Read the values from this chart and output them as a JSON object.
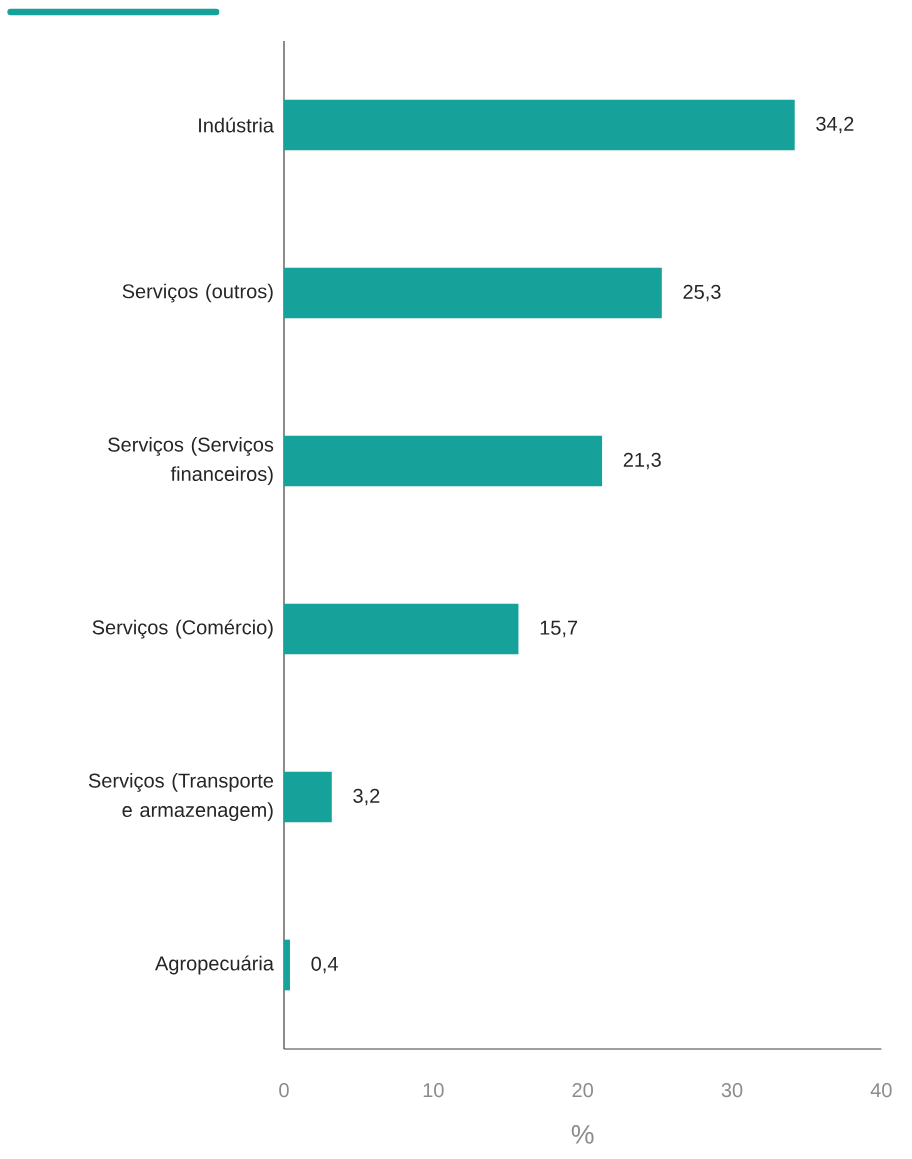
{
  "chart_data": {
    "type": "bar",
    "orientation": "horizontal",
    "xlabel": "%",
    "categories": [
      "Indústria",
      "Serviços (outros)",
      "Serviços (Serviços financeiros)",
      "Serviços (Comércio)",
      "Serviços (Transporte e armazenagem)",
      "Agropecuária"
    ],
    "values": [
      34.2,
      25.3,
      21.3,
      15.7,
      3.2,
      0.4
    ],
    "value_labels": [
      "34,2",
      "25,3",
      "21,3",
      "15,7",
      "3,2",
      "0,4"
    ],
    "color": "#17a19b",
    "xlim": [
      0,
      40
    ],
    "xticks": [
      0,
      10,
      20,
      30,
      40
    ]
  }
}
